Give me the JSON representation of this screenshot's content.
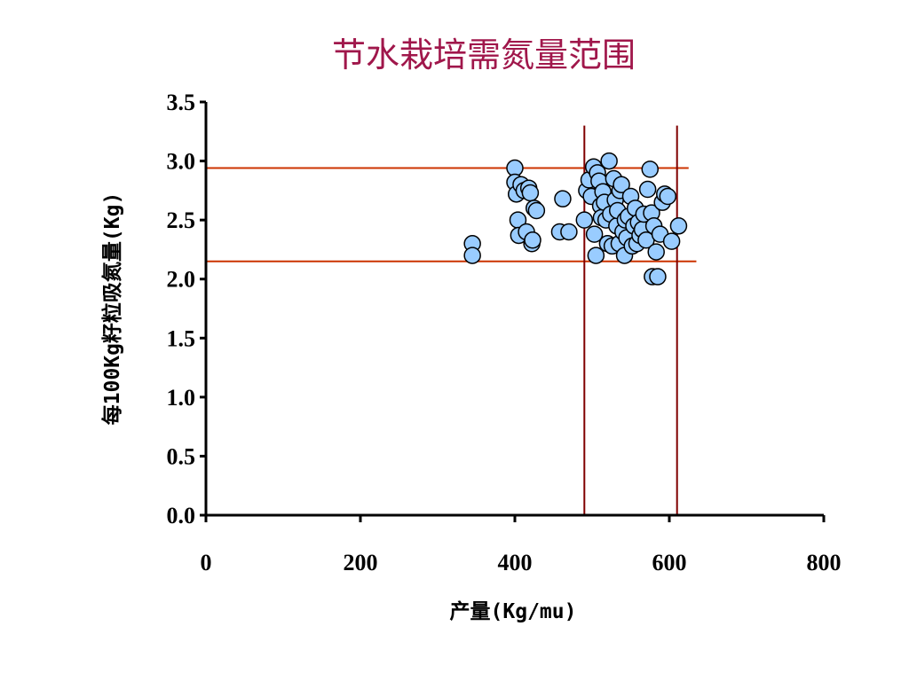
{
  "chart_data": {
    "type": "scatter",
    "title": "节水栽培需氮量范围",
    "xlabel": "产量(Kg/mu)",
    "ylabel": "每100Kg籽粒吸氮量(Kg)",
    "xlim": [
      0,
      800
    ],
    "ylim": [
      0,
      3.5
    ],
    "x_ticks": [
      "0",
      "200",
      "400",
      "600",
      "800"
    ],
    "y_ticks": [
      "0.0",
      "0.5",
      "1.0",
      "1.5",
      "2.0",
      "2.5",
      "3.0",
      "3.5"
    ],
    "grid": false,
    "legend": "none",
    "marker_color": "#99CCFF",
    "reference_line_color_h": "#CC3300",
    "reference_line_color_v": "#800000",
    "reference_lines": {
      "horizontal": [
        {
          "y": 2.94,
          "x_start": 0,
          "x_end": 625
        },
        {
          "y": 2.15,
          "x_start": 0,
          "x_end": 635
        }
      ],
      "vertical": [
        {
          "x": 490,
          "y_start": 0,
          "y_end": 3.3
        },
        {
          "x": 610,
          "y_start": 0,
          "y_end": 3.3
        }
      ]
    },
    "series": [
      {
        "points": [
          [
            345,
            2.3
          ],
          [
            345,
            2.2
          ],
          [
            400,
            2.94
          ],
          [
            400,
            2.82
          ],
          [
            402,
            2.72
          ],
          [
            404,
            2.5
          ],
          [
            405,
            2.37
          ],
          [
            408,
            2.8
          ],
          [
            412,
            2.75
          ],
          [
            415,
            2.4
          ],
          [
            418,
            2.77
          ],
          [
            420,
            2.73
          ],
          [
            422,
            2.3
          ],
          [
            423,
            2.33
          ],
          [
            425,
            2.6
          ],
          [
            428,
            2.58
          ],
          [
            458,
            2.4
          ],
          [
            462,
            2.68
          ],
          [
            470,
            2.4
          ],
          [
            490,
            2.5
          ],
          [
            493,
            2.75
          ],
          [
            496,
            2.84
          ],
          [
            499,
            2.7
          ],
          [
            502,
            2.95
          ],
          [
            503,
            2.38
          ],
          [
            505,
            2.2
          ],
          [
            507,
            2.9
          ],
          [
            509,
            2.83
          ],
          [
            511,
            2.62
          ],
          [
            512,
            2.52
          ],
          [
            514,
            2.74
          ],
          [
            516,
            2.65
          ],
          [
            518,
            2.5
          ],
          [
            520,
            2.3
          ],
          [
            522,
            3.0
          ],
          [
            524,
            2.55
          ],
          [
            526,
            2.28
          ],
          [
            528,
            2.85
          ],
          [
            530,
            2.67
          ],
          [
            532,
            2.45
          ],
          [
            533,
            2.58
          ],
          [
            535,
            2.3
          ],
          [
            536,
            2.75
          ],
          [
            538,
            2.8
          ],
          [
            540,
            2.4
          ],
          [
            542,
            2.2
          ],
          [
            543,
            2.5
          ],
          [
            545,
            2.35
          ],
          [
            547,
            2.53
          ],
          [
            550,
            2.7
          ],
          [
            552,
            2.28
          ],
          [
            554,
            2.45
          ],
          [
            556,
            2.6
          ],
          [
            558,
            2.3
          ],
          [
            560,
            2.48
          ],
          [
            562,
            2.37
          ],
          [
            565,
            2.42
          ],
          [
            567,
            2.55
          ],
          [
            570,
            2.33
          ],
          [
            572,
            2.76
          ],
          [
            575,
            2.93
          ],
          [
            577,
            2.56
          ],
          [
            578,
            2.02
          ],
          [
            580,
            2.45
          ],
          [
            583,
            2.23
          ],
          [
            585,
            2.02
          ],
          [
            588,
            2.38
          ],
          [
            591,
            2.65
          ],
          [
            594,
            2.72
          ],
          [
            598,
            2.7
          ],
          [
            603,
            2.32
          ],
          [
            612,
            2.45
          ]
        ]
      }
    ]
  }
}
